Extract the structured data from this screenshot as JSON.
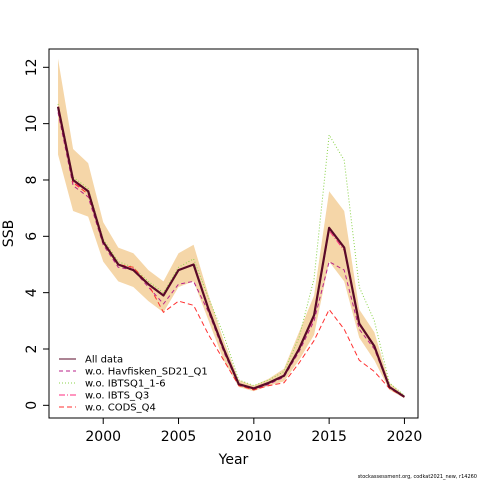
{
  "chart_data": {
    "type": "line",
    "xlabel": "Year",
    "ylabel": "SSB",
    "xlim": [
      1996.4,
      2020.9
    ],
    "ylim": [
      -0.45,
      12.65
    ],
    "x_ticks": [
      2000,
      2005,
      2010,
      2015,
      2020
    ],
    "y_ticks": [
      0,
      2,
      4,
      6,
      8,
      10,
      12
    ],
    "x_tick_labels": [
      "2000",
      "2005",
      "2010",
      "2015",
      "2020"
    ],
    "y_tick_labels": [
      "0",
      "2",
      "4",
      "6",
      "8",
      "10",
      "12"
    ],
    "grid": false,
    "legend_position": "bottom-left",
    "years": [
      1997,
      1998,
      1999,
      2000,
      2001,
      2002,
      2003,
      2004,
      2005,
      2006,
      2007,
      2008,
      2009,
      2010,
      2011,
      2012,
      2013,
      2014,
      2015,
      2016,
      2017,
      2018,
      2019,
      2020
    ],
    "confidence_band": {
      "color": "#f5d6a8",
      "lower": [
        8.9,
        6.9,
        6.7,
        5.1,
        4.4,
        4.2,
        3.7,
        3.3,
        4.2,
        4.4,
        3.0,
        1.6,
        0.65,
        0.5,
        0.7,
        0.85,
        1.6,
        2.5,
        5.1,
        4.4,
        2.4,
        1.6,
        0.55,
        0.25
      ],
      "upper": [
        12.3,
        9.1,
        8.6,
        6.5,
        5.6,
        5.4,
        4.8,
        4.4,
        5.4,
        5.7,
        3.9,
        2.3,
        0.9,
        0.7,
        0.95,
        1.3,
        2.6,
        3.9,
        7.6,
        6.9,
        3.4,
        2.6,
        0.8,
        0.35
      ]
    },
    "series": [
      {
        "name": "All data",
        "color": "#5a0a28",
        "dash": "",
        "width": 2.2,
        "values": [
          10.6,
          8.0,
          7.6,
          5.8,
          5.0,
          4.8,
          4.3,
          3.9,
          4.8,
          5.0,
          3.4,
          2.0,
          0.75,
          0.6,
          0.8,
          1.05,
          2.0,
          3.2,
          6.3,
          5.6,
          2.9,
          2.1,
          0.65,
          0.3
        ]
      },
      {
        "name": "w.o. Havfisken_SD21_Q1",
        "color": "#b8228a",
        "dash": "4,3",
        "width": 1,
        "values": [
          10.4,
          7.8,
          7.4,
          5.7,
          4.9,
          4.8,
          4.2,
          3.6,
          4.3,
          4.4,
          3.3,
          1.9,
          0.72,
          0.55,
          0.75,
          1.0,
          1.9,
          3.0,
          5.1,
          4.8,
          2.7,
          2.0,
          0.62,
          0.28
        ]
      },
      {
        "name": "w.o. IBTSQ1_1-6",
        "color": "#8ad34a",
        "dash": "1,2",
        "width": 1,
        "values": [
          10.7,
          8.1,
          7.7,
          5.9,
          5.1,
          4.9,
          4.4,
          4.0,
          4.9,
          5.2,
          3.8,
          2.5,
          0.9,
          0.7,
          0.9,
          1.2,
          2.4,
          4.5,
          9.6,
          8.7,
          4.2,
          3.0,
          0.8,
          0.35
        ]
      },
      {
        "name": "w.o. IBTS_Q3",
        "color": "#ff2b7f",
        "dash": "6,2,1,2",
        "width": 1,
        "values": [
          10.5,
          7.9,
          7.6,
          5.8,
          5.0,
          4.85,
          4.3,
          3.9,
          4.8,
          5.0,
          3.4,
          2.0,
          0.75,
          0.6,
          0.8,
          1.05,
          2.0,
          3.1,
          6.2,
          5.5,
          2.9,
          2.1,
          0.65,
          0.3
        ]
      },
      {
        "name": "w.o. CODS_Q4",
        "color": "#ff3030",
        "dash": "5,3",
        "width": 1,
        "values": [
          10.6,
          7.9,
          7.5,
          5.8,
          5.0,
          4.9,
          4.3,
          3.3,
          3.7,
          3.55,
          2.5,
          1.6,
          0.7,
          0.55,
          0.7,
          0.8,
          1.5,
          2.3,
          3.4,
          2.7,
          1.6,
          1.2,
          0.6,
          0.28
        ]
      }
    ],
    "legend": {
      "entries": [
        "All data",
        "w.o. Havfisken_SD21_Q1",
        "w.o. IBTSQ1_1-6",
        "w.o. IBTS_Q3",
        "w.o. CODS_Q4"
      ]
    },
    "footnote": "stockassessment.org, codkat2021_new, r14260"
  }
}
